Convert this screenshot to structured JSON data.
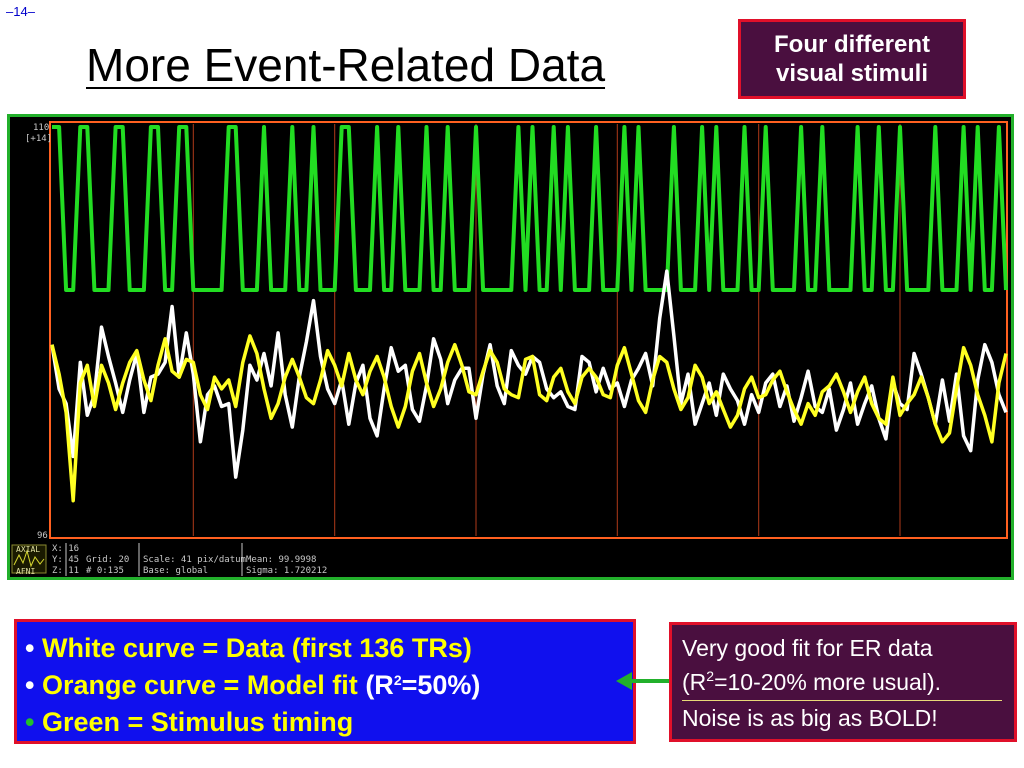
{
  "slide": {
    "page_number": "–14–",
    "title": "More Event-Related Data"
  },
  "callout_top": {
    "line1": "Four different",
    "line2": "visual stimuli"
  },
  "plot": {
    "y_top_label": "110",
    "y_top_sub": "[+14]",
    "y_bottom_label": "96",
    "info_left": [
      "X: 16",
      "Y: 45",
      "Z: 11"
    ],
    "info_grid": [
      "Grid:   20",
      "#   0:135"
    ],
    "info_scale": [
      "Scale: 41 pix/datum",
      " Base: global"
    ],
    "info_stats": [
      "Mean:    99.9998",
      "Sigma:  1.720212"
    ],
    "thumb_top": "AXIAL",
    "thumb_bottom": "AFNI",
    "colors": {
      "frame": "#22b02b",
      "stimulus": "#22dd22",
      "model": "#ffff22",
      "data": "#ffffff",
      "border": "#ff6020"
    }
  },
  "legend": {
    "line1": "White curve = Data (first 136 TRs)",
    "line2_a": "Orange curve = Model fit",
    "line2_b": "(R",
    "line2_sup": "2",
    "line2_c": "=50%)",
    "line3": "Green = Stimulus timing",
    "bullet": "•"
  },
  "callout_bottom": {
    "line1": "Very good fit  for ER data",
    "line2_a": "(R",
    "line2_sup": "2",
    "line2_b": "=10-20% more usual).",
    "line3": "Noise is as big as BOLD!"
  },
  "chart_data": {
    "type": "line",
    "ylim": [
      96,
      110
    ],
    "x": "TR index 0-135",
    "series": [
      {
        "role": "stimulus",
        "values": [
          1,
          1,
          0,
          0,
          1,
          1,
          0,
          0,
          0,
          1,
          1,
          0,
          0,
          0,
          1,
          1,
          0,
          0,
          1,
          1,
          0,
          0,
          0,
          0,
          0,
          1,
          1,
          0,
          0,
          0,
          1,
          0,
          0,
          0,
          1,
          0,
          0,
          1,
          0,
          0,
          0,
          1,
          1,
          0,
          0,
          0,
          1,
          0,
          0,
          1,
          0,
          0,
          0,
          1,
          0,
          0,
          1,
          0,
          0,
          0,
          1,
          0,
          0,
          0,
          0,
          0,
          1,
          0,
          1,
          0,
          0,
          1,
          0,
          1,
          0,
          0,
          0,
          1,
          0,
          0,
          0,
          1,
          0,
          1,
          0,
          0,
          0,
          0,
          1,
          0,
          0,
          0,
          1,
          0,
          1,
          0,
          0,
          0,
          1,
          0,
          0,
          1,
          0,
          0,
          0,
          0,
          1,
          0,
          0,
          1,
          0,
          0,
          0,
          0,
          1,
          0,
          0,
          1,
          0,
          0,
          1,
          0,
          0,
          0,
          0,
          1,
          0,
          0,
          0,
          1,
          0,
          1,
          0,
          0,
          1,
          0
        ]
      },
      {
        "role": "model",
        "values": [
          102.5,
          101.5,
          100.2,
          97.2,
          101.2,
          101.8,
          100.4,
          101.8,
          101.2,
          100.3,
          101.2,
          101.9,
          102.3,
          101.3,
          100.6,
          101.8,
          102.7,
          101.6,
          101.4,
          102.0,
          101.9,
          100.8,
          100.3,
          101.4,
          101.0,
          101.3,
          100.4,
          101.9,
          102.8,
          102.2,
          101.0,
          100.0,
          100.5,
          101.4,
          102.0,
          101.4,
          100.7,
          100.5,
          101.3,
          102.3,
          101.8,
          101.1,
          102.2,
          101.3,
          100.8,
          101.6,
          102.1,
          101.4,
          100.4,
          99.7,
          100.4,
          101.6,
          102.2,
          101.2,
          100.4,
          101.0,
          101.9,
          102.5,
          101.8,
          100.9,
          100.8,
          101.6,
          102.3,
          101.9,
          101.0,
          100.8,
          100.7,
          102.0,
          102.1,
          100.8,
          100.6,
          101.4,
          101.7,
          100.9,
          100.5,
          101.4,
          101.7,
          101.4,
          100.8,
          100.7,
          101.8,
          102.4,
          101.5,
          100.6,
          100.2,
          101.3,
          102.1,
          101.9,
          101.0,
          100.3,
          100.7,
          101.8,
          101.4,
          100.5,
          100.9,
          100.3,
          99.7,
          100.1,
          101.0,
          101.4,
          100.7,
          100.8,
          101.3,
          101.6,
          100.9,
          100.3,
          99.8,
          100.5,
          100.1,
          100.9,
          101.1,
          101.5,
          100.9,
          100.2,
          100.9,
          101.4,
          100.5,
          100.0,
          99.8,
          101.4,
          100.1,
          100.5,
          100.8,
          101.4,
          100.7,
          99.8,
          99.2,
          99.5,
          101.0,
          102.4,
          101.8,
          100.8,
          100.1,
          99.2,
          101.2,
          102.2
        ]
      },
      {
        "role": "data",
        "values": [
          102.5,
          101.0,
          100.5,
          98.7,
          101.9,
          100.1,
          100.8,
          103.1,
          102.1,
          101.2,
          100.2,
          101.3,
          102.2,
          100.2,
          101.4,
          101.5,
          101.9,
          103.8,
          101.4,
          102.9,
          101.5,
          99.2,
          100.8,
          101.1,
          100.4,
          100.5,
          98.0,
          99.6,
          101.8,
          101.3,
          102.2,
          101.1,
          102.9,
          100.8,
          99.7,
          101.4,
          102.6,
          104.0,
          102.1,
          101.0,
          100.5,
          101.3,
          99.8,
          101.2,
          101.8,
          100.0,
          99.4,
          101.0,
          102.4,
          101.6,
          101.8,
          100.3,
          99.9,
          101.1,
          102.7,
          102.0,
          100.5,
          101.3,
          101.7,
          101.7,
          100.0,
          101.5,
          102.5,
          101.1,
          100.5,
          102.3,
          101.8,
          101.5,
          102.1,
          101.9,
          101.0,
          100.7,
          100.9,
          100.4,
          100.3,
          102.1,
          101.9,
          100.9,
          101.7,
          101.0,
          101.2,
          100.4,
          101.3,
          101.7,
          102.2,
          101.1,
          103.4,
          105.0,
          102.8,
          100.5,
          101.5,
          99.8,
          100.5,
          101.2,
          100.1,
          101.5,
          101.0,
          100.6,
          99.8,
          100.8,
          100.2,
          101.2,
          101.5,
          100.4,
          101.1,
          99.9,
          100.7,
          101.6,
          100.4,
          100.2,
          101.0,
          99.6,
          100.3,
          101.2,
          99.8,
          100.5,
          101.1,
          100.0,
          99.3,
          101.2,
          100.5,
          100.3,
          102.2,
          101.5,
          100.7,
          99.8,
          101.3,
          99.9,
          101.5,
          99.4,
          98.9,
          101.3,
          102.5,
          101.9,
          100.8,
          100.2
        ]
      }
    ]
  }
}
